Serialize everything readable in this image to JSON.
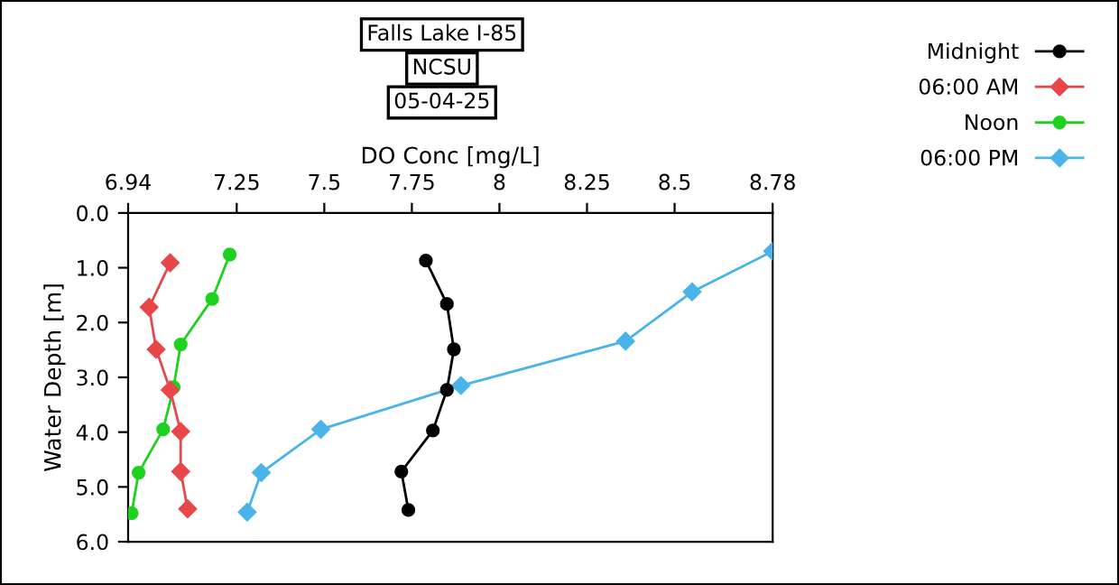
{
  "chart_data": {
    "type": "line",
    "title": "Falls Lake I-85",
    "subtitle": "NCSU",
    "annotations": [
      "05-04-25"
    ],
    "xlabel": "DO Conc [mg/L]",
    "ylabel": "Water Depth [m]",
    "xlim": [
      6.94,
      8.78
    ],
    "xticks": [
      6.94,
      7.25,
      7.5,
      7.75,
      8,
      8.25,
      8.5,
      8.78
    ],
    "ylim": [
      6,
      0
    ],
    "yticks": [
      {
        "value": 0,
        "label": "0.0"
      },
      {
        "value": 1,
        "label": "1.0"
      },
      {
        "value": 2,
        "label": "2.0"
      },
      {
        "value": 3,
        "label": "3.0"
      },
      {
        "value": 4,
        "label": "4.0"
      },
      {
        "value": 5,
        "label": "5.0"
      },
      {
        "value": 6,
        "label": "6.0"
      }
    ],
    "grid": false,
    "legend": "top right",
    "line_style": "solid",
    "series": [
      {
        "name": "Midnight",
        "color": "#000000",
        "marker": "circle",
        "x": [
          7.79,
          7.85,
          7.87,
          7.85,
          7.81,
          7.72,
          7.74
        ],
        "values": [
          0.87,
          1.66,
          2.49,
          3.23,
          3.97,
          4.72,
          5.42
        ]
      },
      {
        "name": "06:00 AM",
        "color": "#e8474a",
        "marker": "diamond",
        "x": [
          7.06,
          7.0,
          7.02,
          7.06,
          7.09,
          7.09,
          7.11
        ],
        "values": [
          0.91,
          1.72,
          2.49,
          3.23,
          3.99,
          4.72,
          5.4
        ]
      },
      {
        "name": "Noon",
        "color": "#1fd11f",
        "marker": "circle",
        "x": [
          7.23,
          7.18,
          7.09,
          7.07,
          7.04,
          6.97,
          6.95
        ],
        "values": [
          0.76,
          1.57,
          2.4,
          3.18,
          3.95,
          4.74,
          5.48
        ]
      },
      {
        "name": "06:00 PM",
        "color": "#4ab3ea",
        "marker": "diamond",
        "x": [
          8.78,
          8.55,
          8.36,
          7.89,
          7.49,
          7.32,
          7.28
        ],
        "values": [
          0.7,
          1.44,
          2.34,
          3.15,
          3.95,
          4.74,
          5.46
        ]
      }
    ]
  }
}
